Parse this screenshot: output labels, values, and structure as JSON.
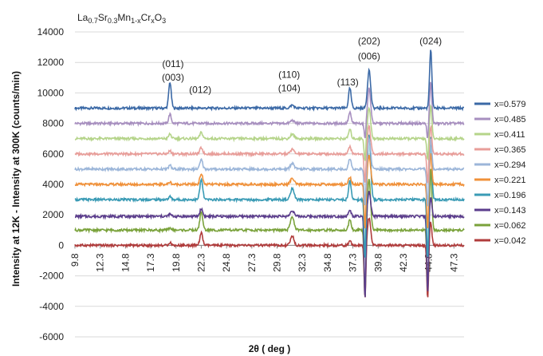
{
  "chart_data": {
    "type": "line",
    "title_parts": [
      {
        "t": "La",
        "sub": false
      },
      {
        "t": "0.7",
        "sub": true
      },
      {
        "t": "Sr",
        "sub": false
      },
      {
        "t": "0.3",
        "sub": true
      },
      {
        "t": "Mn",
        "sub": false
      },
      {
        "t": "1-x",
        "sub": true
      },
      {
        "t": "Cr",
        "sub": false
      },
      {
        "t": "x",
        "sub": true
      },
      {
        "t": "O",
        "sub": false
      },
      {
        "t": "3",
        "sub": true
      }
    ],
    "xlabel": "2θ ( deg )",
    "ylabel": "Intensity at 12K - Intensity at 300K (counts/min)",
    "xlim": [
      9.8,
      48.3
    ],
    "ylim": [
      -6000,
      14000
    ],
    "x_ticks": [
      "9.8",
      "12.3",
      "14.8",
      "17.3",
      "19.8",
      "22.3",
      "24.8",
      "27.3",
      "29.8",
      "32.3",
      "34.8",
      "37.3",
      "39.8",
      "42.3",
      "44.8",
      "47.3"
    ],
    "y_ticks": [
      -6000,
      -4000,
      -2000,
      0,
      2000,
      4000,
      6000,
      8000,
      10000,
      12000,
      14000
    ],
    "grid": "horizontal",
    "legend_position": "right",
    "annotations": [
      {
        "text": "(011)",
        "x": 19.5,
        "y": 11700
      },
      {
        "text": "(003)",
        "x": 19.5,
        "y": 10800
      },
      {
        "text": "(012)",
        "x": 22.2,
        "y": 10000
      },
      {
        "text": "(110)",
        "x": 31.0,
        "y": 11000
      },
      {
        "text": "(104)",
        "x": 31.0,
        "y": 10100
      },
      {
        "text": "(113)",
        "x": 36.8,
        "y": 10500
      },
      {
        "text": "(202)",
        "x": 38.9,
        "y": 13200
      },
      {
        "text": "(006)",
        "x": 38.9,
        "y": 12200
      },
      {
        "text": "(024)",
        "x": 45.0,
        "y": 13200
      }
    ],
    "peaks": [
      {
        "pos": 19.2,
        "width": 0.18
      },
      {
        "pos": 22.3,
        "width": 0.2
      },
      {
        "pos": 31.3,
        "width": 0.25
      },
      {
        "pos": 37.0,
        "width": 0.18
      },
      {
        "pos": 38.9,
        "width": 0.22
      },
      {
        "pos": 45.0,
        "width": 0.16
      }
    ],
    "series": [
      {
        "name": "x=0.579",
        "color": "#3b69a6",
        "offset": 9000,
        "peak_heights": [
          1700,
          0,
          200,
          1300,
          2500,
          3800
        ],
        "dips": [
          {
            "pos": 38.5,
            "depth": 0
          },
          {
            "pos": 44.7,
            "depth": 0
          }
        ]
      },
      {
        "name": "x=0.485",
        "color": "#a78fbf",
        "offset": 8000,
        "peak_heights": [
          600,
          0,
          200,
          700,
          2300,
          2700
        ],
        "dips": [
          {
            "pos": 38.5,
            "depth": 1000
          },
          {
            "pos": 44.7,
            "depth": 1000
          }
        ]
      },
      {
        "name": "x=0.411",
        "color": "#b5d48a",
        "offset": 7000,
        "peak_heights": [
          300,
          400,
          300,
          600,
          2000,
          2200
        ],
        "dips": [
          {
            "pos": 38.5,
            "depth": 1500
          },
          {
            "pos": 44.7,
            "depth": 1500
          }
        ]
      },
      {
        "name": "x=0.365",
        "color": "#e89e9a",
        "offset": 6000,
        "peak_heights": [
          200,
          400,
          300,
          500,
          1800,
          1800
        ],
        "dips": [
          {
            "pos": 38.5,
            "depth": 2000
          },
          {
            "pos": 44.7,
            "depth": 2000
          }
        ]
      },
      {
        "name": "x=0.294",
        "color": "#9cb6d9",
        "offset": 5000,
        "peak_heights": [
          250,
          600,
          400,
          700,
          2000,
          2000
        ],
        "dips": [
          {
            "pos": 38.5,
            "depth": 2500
          },
          {
            "pos": 44.7,
            "depth": 2500
          }
        ]
      },
      {
        "name": "x=0.221",
        "color": "#f0913a",
        "offset": 4000,
        "peak_heights": [
          150,
          700,
          400,
          500,
          1900,
          2000
        ],
        "dips": [
          {
            "pos": 38.5,
            "depth": 3000
          },
          {
            "pos": 44.7,
            "depth": 3000
          }
        ]
      },
      {
        "name": "x=0.196",
        "color": "#3a9bb5",
        "offset": 3000,
        "peak_heights": [
          200,
          1300,
          700,
          1200,
          4300,
          4200
        ],
        "dips": [
          {
            "pos": 38.5,
            "depth": 4000
          },
          {
            "pos": 44.7,
            "depth": 4000
          }
        ]
      },
      {
        "name": "x=0.143",
        "color": "#5b3d8c",
        "offset": 1900,
        "peak_heights": [
          150,
          500,
          400,
          400,
          1600,
          1200
        ],
        "dips": [
          {
            "pos": 38.5,
            "depth": 5500
          },
          {
            "pos": 44.7,
            "depth": 5000
          }
        ]
      },
      {
        "name": "x=0.062",
        "color": "#7aa23b",
        "offset": 1000,
        "peak_heights": [
          150,
          1200,
          900,
          700,
          3300,
          4000
        ],
        "dips": [
          {
            "pos": 38.5,
            "depth": 4500
          },
          {
            "pos": 44.7,
            "depth": 4000
          }
        ]
      },
      {
        "name": "x=0.042",
        "color": "#b03c3c",
        "offset": 0,
        "peak_heights": [
          200,
          800,
          600,
          300,
          1800,
          1500
        ],
        "dips": [
          {
            "pos": 38.5,
            "depth": 3500
          },
          {
            "pos": 44.7,
            "depth": 3500
          }
        ]
      }
    ]
  }
}
